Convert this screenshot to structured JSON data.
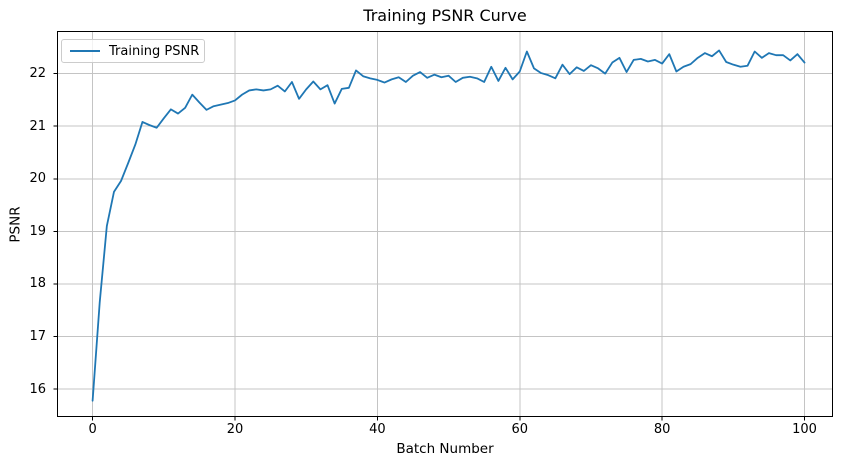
{
  "figure": {
    "title": "Training PSNR Curve",
    "x_axis_label": "Batch Number",
    "y_axis_label": "PSNR",
    "legend": {
      "position": "upper-left",
      "entries": [
        {
          "label": "Training PSNR",
          "color": "#1f77b4"
        }
      ]
    },
    "x_tick_labels": [
      "0",
      "20",
      "40",
      "60",
      "80",
      "100"
    ],
    "y_tick_labels": [
      "16",
      "17",
      "18",
      "19",
      "20",
      "21",
      "22"
    ]
  },
  "chart_data": {
    "type": "line",
    "title": "Training PSNR Curve",
    "xlabel": "Batch Number",
    "ylabel": "PSNR",
    "grid": true,
    "legend_position": "upper left",
    "xlim": [
      -5,
      104
    ],
    "ylim": [
      15.47,
      22.81
    ],
    "xticks": [
      0,
      20,
      40,
      60,
      80,
      100
    ],
    "yticks": [
      16,
      17,
      18,
      19,
      20,
      21,
      22
    ],
    "series": [
      {
        "name": "Training PSNR",
        "color": "#1f77b4",
        "x_start": 0,
        "x_step": 1,
        "values": [
          15.78,
          17.65,
          19.1,
          19.75,
          19.96,
          20.3,
          20.65,
          21.08,
          21.02,
          20.97,
          21.15,
          21.32,
          21.24,
          21.35,
          21.6,
          21.45,
          21.31,
          21.38,
          21.41,
          21.44,
          21.49,
          21.6,
          21.68,
          21.7,
          21.68,
          21.7,
          21.77,
          21.66,
          21.84,
          21.52,
          21.7,
          21.85,
          21.7,
          21.78,
          21.43,
          21.71,
          21.73,
          22.06,
          21.95,
          21.91,
          21.88,
          21.83,
          21.89,
          21.93,
          21.84,
          21.96,
          22.03,
          21.92,
          21.98,
          21.93,
          21.96,
          21.84,
          21.92,
          21.94,
          21.91,
          21.84,
          22.13,
          21.86,
          22.11,
          21.89,
          22.04,
          22.42,
          22.1,
          22.01,
          21.97,
          21.91,
          22.17,
          21.99,
          22.12,
          22.05,
          22.16,
          22.1,
          22.0,
          22.21,
          22.3,
          22.03,
          22.26,
          22.28,
          22.23,
          22.26,
          22.19,
          22.37,
          22.04,
          22.13,
          22.18,
          22.3,
          22.39,
          22.33,
          22.44,
          22.22,
          22.17,
          22.13,
          22.15,
          22.42,
          22.3,
          22.39,
          22.35,
          22.35,
          22.25,
          22.37,
          22.21
        ]
      }
    ]
  },
  "colors": {
    "line": "#1f77b4",
    "grid": "#c4c4c4",
    "axes_edge": "#000000",
    "text": "#000000",
    "background": "#ffffff",
    "legend_border": "#cccccc"
  }
}
